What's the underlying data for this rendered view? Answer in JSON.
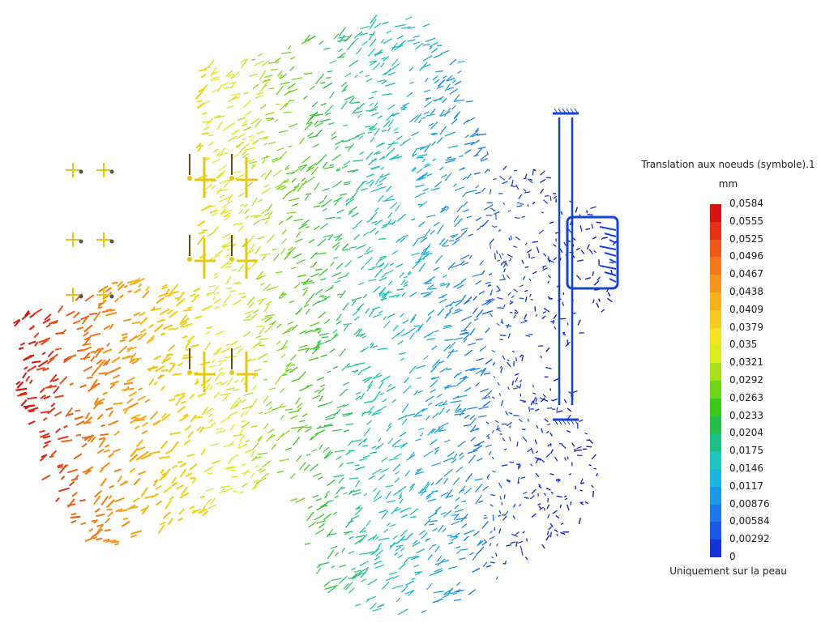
{
  "legend": {
    "title": "Translation aux noeuds (symbole).1",
    "unit": "mm",
    "footer": "Uniquement sur la peau",
    "values": [
      "0,0584",
      "0,0555",
      "0,0525",
      "0,0496",
      "0,0467",
      "0,0438",
      "0,0409",
      "0,0379",
      "0,035",
      "0,0321",
      "0,0292",
      "0,0263",
      "0,0233",
      "0,0204",
      "0,0175",
      "0,0146",
      "0,0117",
      "0,00876",
      "0,00584",
      "0,00292",
      "0"
    ],
    "colors": [
      "#d71414",
      "#e4321a",
      "#ee5a1c",
      "#f27a1d",
      "#f5951e",
      "#f7b21e",
      "#f9cb20",
      "#f5e421",
      "#d9ec1e",
      "#a8e01c",
      "#6fd51c",
      "#3bc81e",
      "#26bf4a",
      "#1fbf84",
      "#1ec6c0",
      "#1eb4e0",
      "#1d96e6",
      "#1b78e6",
      "#1958e0",
      "#1534d8",
      "#1010c8"
    ]
  },
  "scene": {
    "arrow_color_scale": [
      "#d71414",
      "#f27a1d",
      "#f9cb20",
      "#d9ec1e",
      "#3bc81e",
      "#1ec6c0",
      "#1d96e6",
      "#1534d8",
      "#1010c8"
    ],
    "constraint_color": "#e6c814",
    "support_color": "#1545d8"
  }
}
